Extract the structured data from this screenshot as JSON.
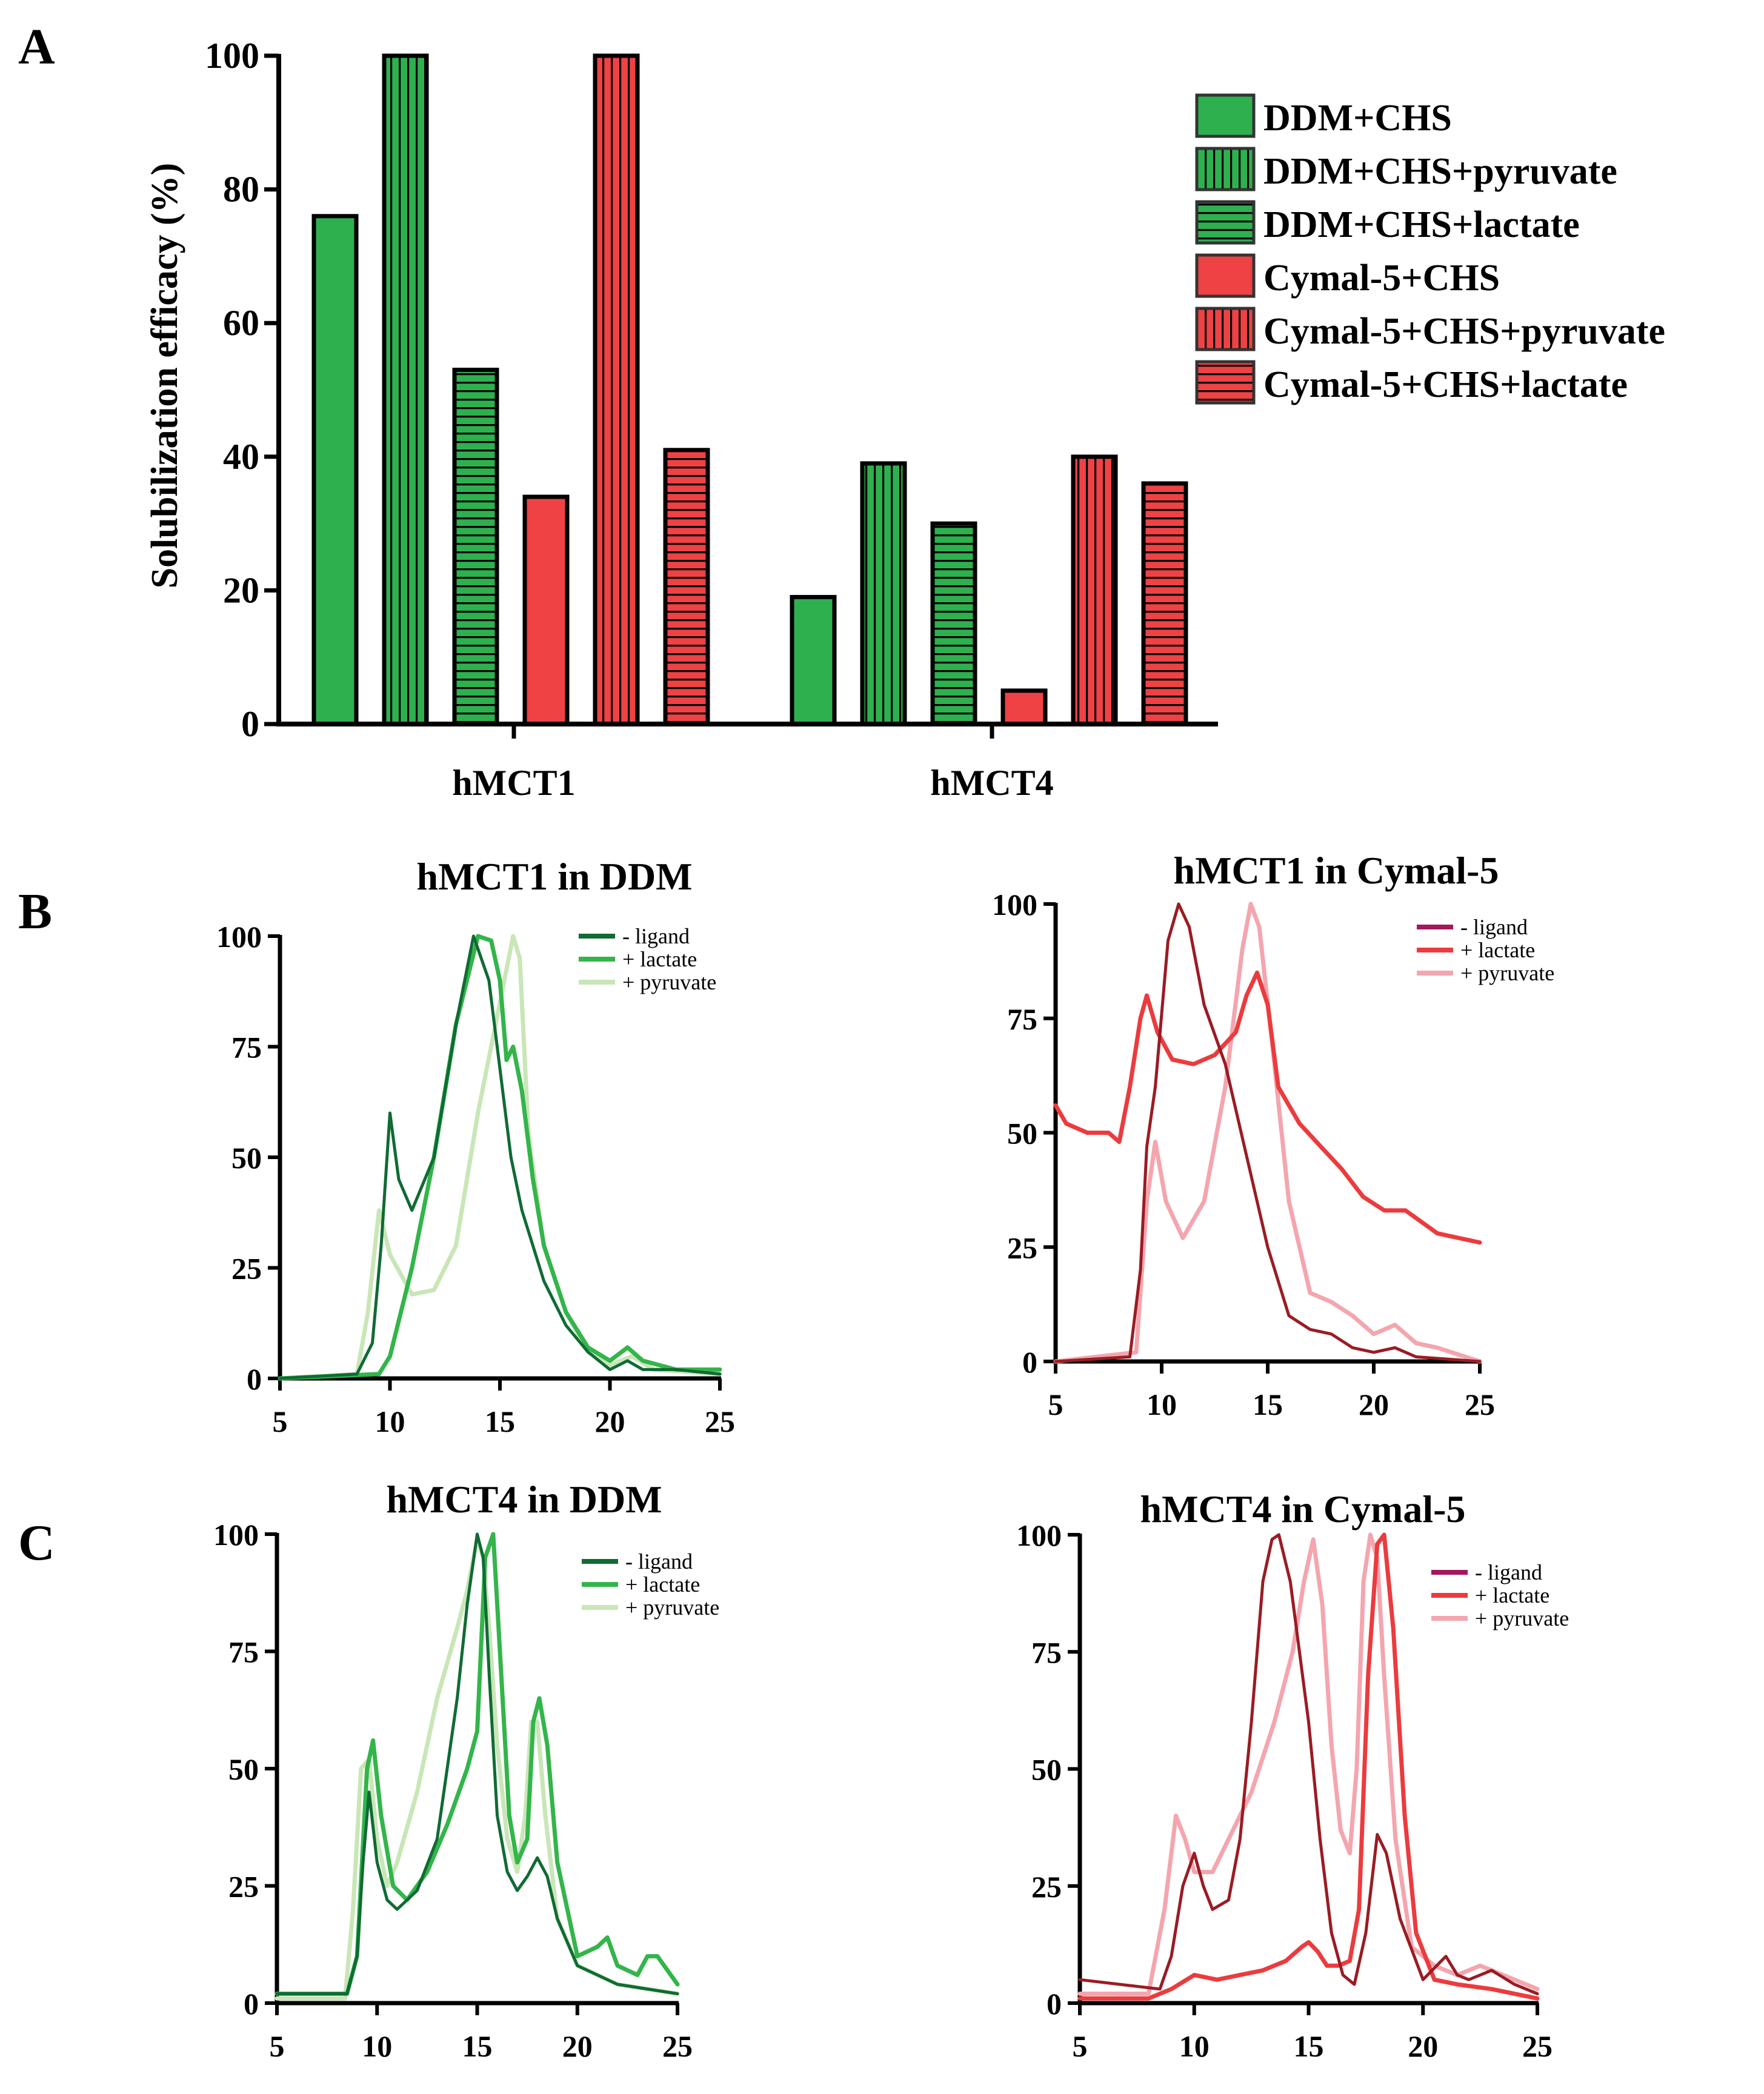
{
  "colors": {
    "green": "#2eb04e",
    "green_dark": "#0f6b34",
    "green_mid": "#33b54a",
    "green_light": "#c9e6b7",
    "red": "#ee4244",
    "red_dark": "#9a1c24",
    "red_mid": "#ec3b3e",
    "red_light": "#f4a5ae",
    "ligand_purple": "#a3185c",
    "axis": "#000000"
  },
  "panel_labels": [
    "A",
    "B",
    "C"
  ],
  "chart_data": [
    {
      "id": "A",
      "type": "bar",
      "title": "",
      "xlabel": "",
      "ylabel": "Solubilization efficacy (%)",
      "ylim": [
        0,
        100
      ],
      "yticks": [
        0,
        20,
        40,
        60,
        80,
        100
      ],
      "categories": [
        "hMCT1",
        "hMCT4"
      ],
      "legend_position": "top-right",
      "series": [
        {
          "name": "DDM+CHS",
          "color": "#2eb04e",
          "pattern": "solid",
          "values": [
            76,
            19
          ]
        },
        {
          "name": "DDM+CHS+pyruvate",
          "color": "#2eb04e",
          "pattern": "vertical",
          "values": [
            100,
            39
          ]
        },
        {
          "name": "DDM+CHS+lactate",
          "color": "#2eb04e",
          "pattern": "horizontal",
          "values": [
            53,
            30
          ]
        },
        {
          "name": "Cymal-5+CHS",
          "color": "#ee4244",
          "pattern": "solid",
          "values": [
            34,
            5
          ]
        },
        {
          "name": "Cymal-5+CHS+pyruvate",
          "color": "#ee4244",
          "pattern": "vertical",
          "values": [
            100,
            40
          ]
        },
        {
          "name": "Cymal-5+CHS+lactate",
          "color": "#ee4244",
          "pattern": "horizontal",
          "values": [
            41,
            36
          ]
        }
      ]
    },
    {
      "id": "B-left",
      "type": "line",
      "title": "hMCT1 in DDM",
      "xlim": [
        5,
        25
      ],
      "ylim": [
        0,
        100
      ],
      "xticks": [
        5,
        10,
        15,
        20,
        25
      ],
      "yticks": [
        0,
        25,
        50,
        75,
        100
      ],
      "legend_position": "top-right",
      "series": [
        {
          "name": "- ligand",
          "color": "#0f6b34",
          "x": [
            5,
            8.5,
            9.2,
            9.6,
            10.0,
            10.4,
            11.0,
            12.0,
            13.0,
            13.8,
            14.5,
            15.0,
            15.5,
            16.0,
            17.0,
            18.0,
            19.0,
            20.0,
            20.8,
            21.5,
            23.0,
            25.0
          ],
          "y": [
            0,
            1,
            8,
            30,
            60,
            45,
            38,
            50,
            80,
            100,
            90,
            70,
            50,
            38,
            22,
            12,
            6,
            2,
            4,
            2,
            2,
            1
          ]
        },
        {
          "name": "+ lactate",
          "color": "#33b54a",
          "x": [
            5,
            9.5,
            10.0,
            10.5,
            11.0,
            12.0,
            13.0,
            14.0,
            14.6,
            15.0,
            15.3,
            15.6,
            16.0,
            16.5,
            17.0,
            18.0,
            19.0,
            20.0,
            20.8,
            21.5,
            23.0,
            25.0
          ],
          "y": [
            0,
            1,
            5,
            15,
            25,
            50,
            80,
            100,
            99,
            90,
            72,
            75,
            65,
            45,
            30,
            15,
            7,
            4,
            7,
            4,
            2,
            2
          ]
        },
        {
          "name": "+ pyruvate",
          "color": "#c9e6b7",
          "x": [
            5,
            8.5,
            9.0,
            9.5,
            10.0,
            11.0,
            12.0,
            13.0,
            14.0,
            15.0,
            15.6,
            15.9,
            16.3,
            17.0,
            18.0,
            19.0,
            20.0,
            21.0,
            22.0,
            25.0
          ],
          "y": [
            0,
            1,
            15,
            38,
            28,
            19,
            20,
            30,
            60,
            85,
            100,
            95,
            55,
            30,
            15,
            6,
            3,
            5,
            2,
            1
          ]
        }
      ]
    },
    {
      "id": "B-right",
      "type": "line",
      "title": "hMCT1 in Cymal-5",
      "xlim": [
        5,
        25
      ],
      "ylim": [
        0,
        100
      ],
      "xticks": [
        5,
        10,
        15,
        20,
        25
      ],
      "yticks": [
        0,
        25,
        50,
        75,
        100
      ],
      "legend_position": "top-right",
      "series": [
        {
          "name": "- ligand",
          "color": "#9a1c24",
          "x": [
            5,
            8.5,
            9.0,
            9.3,
            9.7,
            10.3,
            10.8,
            11.3,
            12.0,
            13.0,
            14.0,
            15.0,
            16.0,
            17.0,
            18.0,
            19.0,
            20.0,
            21.0,
            22.0,
            25.0
          ],
          "y": [
            0,
            1,
            20,
            47,
            60,
            92,
            100,
            95,
            78,
            65,
            45,
            25,
            10,
            7,
            6,
            3,
            2,
            3,
            1,
            0
          ]
        },
        {
          "name": "+ lactate",
          "color": "#ec3b3e",
          "x": [
            5,
            5.5,
            6.5,
            7.5,
            8.0,
            8.5,
            9.0,
            9.3,
            9.8,
            10.5,
            11.5,
            12.5,
            13.5,
            14.0,
            14.5,
            15.0,
            15.5,
            16.5,
            17.5,
            18.5,
            19.5,
            20.5,
            21.5,
            23.0,
            25.0
          ],
          "y": [
            56,
            52,
            50,
            50,
            48,
            60,
            75,
            80,
            72,
            66,
            65,
            67,
            72,
            80,
            85,
            78,
            60,
            52,
            47,
            42,
            36,
            33,
            33,
            28,
            26
          ]
        },
        {
          "name": "+ pyruvate",
          "color": "#f4a5ae",
          "x": [
            5,
            8.8,
            9.3,
            9.7,
            10.2,
            11.0,
            12.0,
            13.0,
            13.8,
            14.2,
            14.6,
            15.2,
            16.0,
            17.0,
            18.0,
            19.0,
            20.0,
            21.0,
            22.0,
            23.0,
            25.0
          ],
          "y": [
            0,
            2,
            35,
            48,
            35,
            27,
            35,
            60,
            90,
            100,
            95,
            70,
            35,
            15,
            13,
            10,
            6,
            8,
            4,
            3,
            0
          ]
        }
      ]
    },
    {
      "id": "C-left",
      "type": "line",
      "title": "hMCT4 in DDM",
      "xlim": [
        5,
        25
      ],
      "ylim": [
        0,
        100
      ],
      "xticks": [
        5,
        10,
        15,
        20,
        25
      ],
      "yticks": [
        0,
        25,
        50,
        75,
        100
      ],
      "legend_position": "top-right",
      "series": [
        {
          "name": "- ligand",
          "color": "#0f6b34",
          "x": [
            5,
            8.5,
            9.0,
            9.3,
            9.6,
            10.0,
            10.5,
            11.0,
            12.0,
            13.0,
            14.0,
            14.5,
            15.0,
            15.3,
            15.6,
            16.0,
            16.5,
            17.0,
            17.5,
            18.0,
            18.5,
            19.0,
            20.0,
            22.0,
            25.0
          ],
          "y": [
            2,
            2,
            10,
            30,
            45,
            30,
            22,
            20,
            24,
            35,
            65,
            85,
            100,
            95,
            70,
            40,
            28,
            24,
            27,
            31,
            27,
            18,
            8,
            4,
            2
          ]
        },
        {
          "name": "+ lactate",
          "color": "#33b54a",
          "x": [
            5,
            8.5,
            9.0,
            9.5,
            9.8,
            10.2,
            10.8,
            11.5,
            12.5,
            13.5,
            14.5,
            15.0,
            15.4,
            15.8,
            16.2,
            16.6,
            17.0,
            17.5,
            17.8,
            18.1,
            18.5,
            19.0,
            20.0,
            21.0,
            21.5,
            22.0,
            23.0,
            23.5,
            24.0,
            25.0
          ],
          "y": [
            2,
            2,
            10,
            50,
            56,
            40,
            25,
            22,
            28,
            38,
            50,
            58,
            95,
            100,
            70,
            40,
            30,
            35,
            60,
            65,
            55,
            30,
            10,
            12,
            14,
            8,
            6,
            10,
            10,
            4
          ]
        },
        {
          "name": "+ pyruvate",
          "color": "#c9e6b7",
          "x": [
            5,
            8.4,
            8.8,
            9.2,
            9.6,
            10.0,
            10.5,
            11.0,
            12.0,
            13.0,
            14.0,
            14.5,
            15.0,
            15.3,
            15.6,
            16.0,
            16.5,
            17.0,
            17.4,
            17.7,
            18.0,
            18.4,
            19.0,
            20.0,
            22.0,
            25.0
          ],
          "y": [
            1,
            1,
            20,
            50,
            52,
            35,
            25,
            30,
            45,
            65,
            80,
            88,
            99,
            95,
            80,
            55,
            35,
            28,
            40,
            60,
            60,
            40,
            18,
            8,
            4,
            2
          ]
        }
      ]
    },
    {
      "id": "C-right",
      "type": "line",
      "title": "hMCT4 in Cymal-5",
      "xlim": [
        5,
        25
      ],
      "ylim": [
        0,
        100
      ],
      "xticks": [
        5,
        10,
        15,
        20,
        25
      ],
      "yticks": [
        0,
        25,
        50,
        75,
        100
      ],
      "legend_position": "top-right",
      "series": [
        {
          "name": "- ligand",
          "color": "#9a1c24",
          "x": [
            5,
            8.5,
            9.0,
            9.5,
            10.0,
            10.4,
            10.8,
            11.5,
            12.0,
            12.5,
            13.0,
            13.4,
            13.7,
            14.2,
            15.0,
            15.5,
            16.0,
            16.5,
            17.0,
            17.5,
            18.0,
            18.4,
            19.0,
            20.0,
            21.0,
            21.5,
            22.0,
            23.0,
            24.0,
            25.0
          ],
          "y": [
            5,
            3,
            10,
            25,
            32,
            25,
            20,
            22,
            35,
            60,
            90,
            99,
            100,
            90,
            60,
            35,
            15,
            6,
            4,
            15,
            36,
            32,
            18,
            5,
            10,
            6,
            5,
            7,
            4,
            2
          ]
        },
        {
          "name": "+ lactate",
          "color": "#ec3b3e",
          "x": [
            5,
            8.0,
            9.0,
            10.0,
            11.0,
            12.0,
            13.0,
            14.0,
            14.7,
            15.0,
            15.4,
            15.8,
            16.3,
            16.8,
            17.2,
            17.6,
            18.0,
            18.3,
            18.7,
            19.2,
            19.7,
            20.5,
            21.5,
            23.0,
            25.0
          ],
          "y": [
            1,
            1,
            3,
            6,
            5,
            6,
            7,
            9,
            12,
            13,
            11,
            8,
            8,
            9,
            20,
            70,
            98,
            100,
            80,
            40,
            15,
            5,
            4,
            3,
            1
          ]
        },
        {
          "name": "+ pyruvate",
          "color": "#f4a5ae",
          "x": [
            5,
            8.0,
            8.7,
            9.2,
            9.6,
            10.0,
            10.8,
            11.5,
            12.5,
            13.5,
            14.3,
            14.8,
            15.2,
            15.6,
            16.0,
            16.4,
            16.8,
            17.1,
            17.4,
            17.7,
            18.0,
            18.3,
            18.8,
            19.5,
            20.5,
            21.5,
            22.5,
            23.5,
            25.0
          ],
          "y": [
            2,
            2,
            20,
            40,
            35,
            28,
            28,
            35,
            45,
            60,
            75,
            90,
            99,
            85,
            55,
            37,
            32,
            50,
            90,
            100,
            95,
            70,
            35,
            12,
            8,
            6,
            8,
            6,
            3
          ]
        }
      ]
    }
  ]
}
